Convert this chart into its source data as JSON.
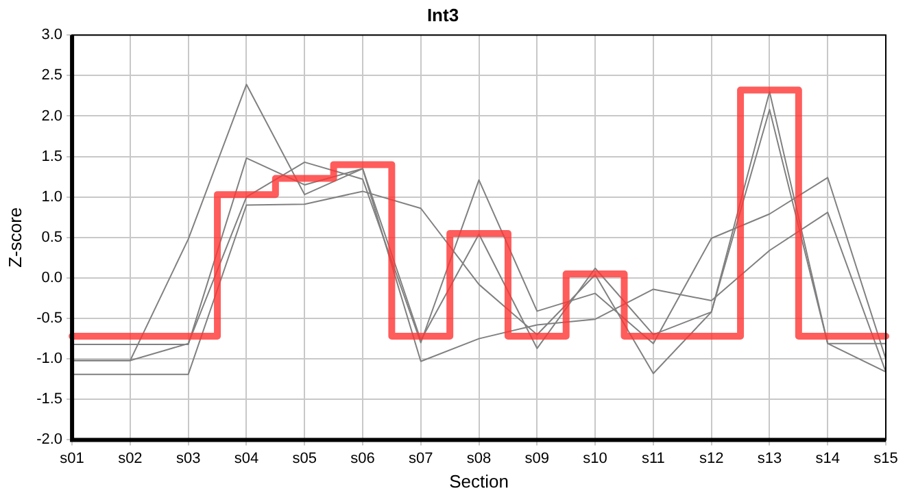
{
  "chart_data": {
    "type": "line",
    "title": "Int3",
    "xlabel": "Section",
    "ylabel": "Z-score",
    "categories": [
      "s01",
      "s02",
      "s03",
      "s04",
      "s05",
      "s06",
      "s07",
      "s08",
      "s09",
      "s10",
      "s11",
      "s12",
      "s13",
      "s14",
      "s15"
    ],
    "series": [
      {
        "type": "step",
        "color": "#ff3333",
        "values": [
          -0.72,
          -0.72,
          -0.72,
          1.03,
          1.23,
          1.4,
          -0.72,
          0.55,
          -0.72,
          0.05,
          -0.72,
          -0.72,
          2.32,
          -0.72,
          -0.72
        ]
      },
      {
        "type": "line",
        "color": "#808080",
        "values": [
          -1.02,
          -1.02,
          0.48,
          2.39,
          1.03,
          1.35,
          -1.03,
          -0.75,
          -0.58,
          -0.51,
          -0.14,
          -0.28,
          0.34,
          0.81,
          -1.16
        ]
      },
      {
        "type": "line",
        "color": "#808080",
        "values": [
          -0.82,
          -0.82,
          -0.82,
          1.48,
          1.15,
          1.35,
          -0.77,
          0.54,
          -0.87,
          0.12,
          -0.7,
          -0.42,
          2.3,
          -0.81,
          -0.81
        ]
      },
      {
        "type": "line",
        "color": "#808080",
        "values": [
          -1.02,
          -1.02,
          -0.81,
          1.0,
          1.43,
          1.22,
          -0.8,
          1.21,
          -0.41,
          -0.19,
          -0.81,
          0.49,
          0.79,
          1.24,
          -1.0
        ]
      },
      {
        "type": "line",
        "color": "#808080",
        "values": [
          -1.19,
          -1.19,
          -1.19,
          0.9,
          0.91,
          1.07,
          0.86,
          -0.08,
          -0.7,
          0.04,
          -1.18,
          -0.42,
          2.08,
          -0.81,
          -1.16
        ]
      }
    ],
    "ylim": [
      -2,
      3
    ],
    "yticks": [
      {
        "value": -2,
        "label": "-2.0"
      },
      -1.5,
      {
        "value": -1,
        "label": "-1.0"
      },
      -0.5,
      {
        "value": 0,
        "label": "0.0"
      },
      0.5,
      {
        "value": 1,
        "label": "1.0"
      },
      1.5,
      {
        "value": 2,
        "label": "2.0"
      },
      2.5,
      {
        "value": 3,
        "label": "3.0"
      }
    ],
    "grid": true,
    "legend": false,
    "marker": "none"
  }
}
